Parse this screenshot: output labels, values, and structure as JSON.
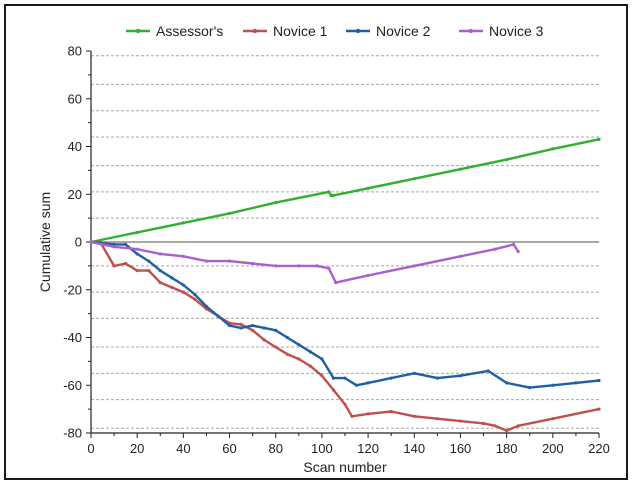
{
  "chart_data": {
    "type": "line",
    "title": "",
    "xlabel": "Scan number",
    "ylabel": "Cumulative sum",
    "xlim": [
      0,
      220
    ],
    "ylim": [
      -80,
      80
    ],
    "x_ticks": [
      0,
      20,
      40,
      60,
      80,
      100,
      120,
      140,
      160,
      180,
      200,
      220
    ],
    "y_ticks": [
      -80,
      -60,
      -40,
      -20,
      0,
      20,
      40,
      60,
      80
    ],
    "grid": "dashed horizontal lines",
    "gridlines_y": [
      -78,
      -66,
      -55,
      -44,
      -32,
      -21,
      -10,
      0,
      10,
      21,
      32,
      44,
      55,
      66,
      78
    ],
    "zero_line": 0,
    "legend_position": "top",
    "series": [
      {
        "name": "Assessor's",
        "color": "#2fb02f",
        "points": [
          [
            0,
            0
          ],
          [
            20,
            4
          ],
          [
            40,
            8
          ],
          [
            60,
            12
          ],
          [
            80,
            16.5
          ],
          [
            103,
            21
          ],
          [
            104,
            19.5
          ],
          [
            105,
            19.5
          ],
          [
            120,
            22.5
          ],
          [
            140,
            26.5
          ],
          [
            160,
            30.5
          ],
          [
            180,
            34.5
          ],
          [
            200,
            39
          ],
          [
            220,
            43
          ]
        ]
      },
      {
        "name": "Novice 1",
        "color": "#c0504d",
        "points": [
          [
            0,
            0
          ],
          [
            4,
            0
          ],
          [
            10,
            -10
          ],
          [
            15,
            -9
          ],
          [
            20,
            -12
          ],
          [
            25,
            -12
          ],
          [
            30,
            -17
          ],
          [
            35,
            -19
          ],
          [
            40,
            -21
          ],
          [
            45,
            -24
          ],
          [
            50,
            -28
          ],
          [
            55,
            -31
          ],
          [
            60,
            -34
          ],
          [
            65,
            -34.5
          ],
          [
            70,
            -37
          ],
          [
            75,
            -41
          ],
          [
            80,
            -44
          ],
          [
            85,
            -47
          ],
          [
            90,
            -49
          ],
          [
            95,
            -52
          ],
          [
            100,
            -56
          ],
          [
            105,
            -62
          ],
          [
            110,
            -68
          ],
          [
            113,
            -73
          ],
          [
            120,
            -72
          ],
          [
            130,
            -71
          ],
          [
            140,
            -73
          ],
          [
            150,
            -74
          ],
          [
            160,
            -75
          ],
          [
            170,
            -76
          ],
          [
            175,
            -77
          ],
          [
            180,
            -79
          ],
          [
            185,
            -77
          ],
          [
            200,
            -74
          ],
          [
            220,
            -70
          ]
        ]
      },
      {
        "name": "Novice 2",
        "color": "#1f5fa6",
        "points": [
          [
            0,
            0
          ],
          [
            10,
            -1
          ],
          [
            15,
            -1
          ],
          [
            20,
            -5
          ],
          [
            25,
            -8
          ],
          [
            30,
            -12
          ],
          [
            35,
            -15
          ],
          [
            40,
            -18
          ],
          [
            45,
            -22
          ],
          [
            50,
            -27
          ],
          [
            55,
            -31
          ],
          [
            60,
            -35
          ],
          [
            65,
            -36
          ],
          [
            70,
            -35
          ],
          [
            75,
            -36
          ],
          [
            80,
            -37
          ],
          [
            85,
            -40
          ],
          [
            90,
            -43
          ],
          [
            95,
            -46
          ],
          [
            100,
            -49
          ],
          [
            105,
            -57
          ],
          [
            110,
            -57
          ],
          [
            115,
            -60
          ],
          [
            120,
            -59
          ],
          [
            130,
            -57
          ],
          [
            140,
            -55
          ],
          [
            150,
            -57
          ],
          [
            160,
            -56
          ],
          [
            172,
            -54
          ],
          [
            180,
            -59
          ],
          [
            190,
            -61
          ],
          [
            200,
            -60
          ],
          [
            210,
            -59
          ],
          [
            220,
            -58
          ]
        ]
      },
      {
        "name": "Novice 3",
        "color": "#a860d0",
        "points": [
          [
            0,
            0
          ],
          [
            5,
            -1
          ],
          [
            10,
            -2
          ],
          [
            20,
            -3
          ],
          [
            30,
            -5
          ],
          [
            40,
            -6
          ],
          [
            50,
            -8
          ],
          [
            60,
            -8
          ],
          [
            70,
            -9
          ],
          [
            80,
            -10
          ],
          [
            90,
            -10
          ],
          [
            98,
            -10
          ],
          [
            103,
            -11
          ],
          [
            106,
            -17
          ],
          [
            120,
            -14
          ],
          [
            140,
            -10
          ],
          [
            160,
            -6
          ],
          [
            175,
            -3
          ],
          [
            183,
            -1
          ],
          [
            185,
            -4
          ]
        ]
      }
    ]
  }
}
